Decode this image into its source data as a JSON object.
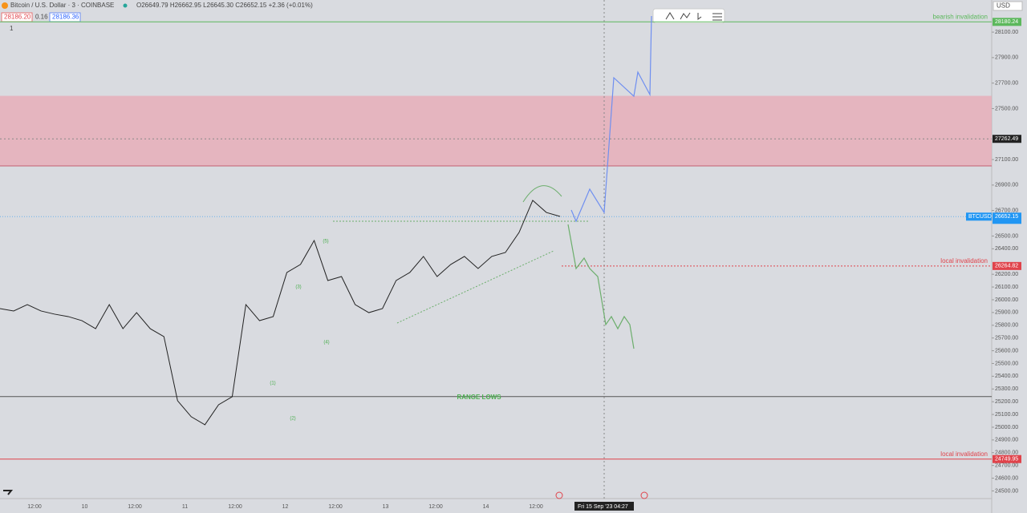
{
  "header": {
    "symbol": "Bitcoin / U.S. Dollar · 3 · COINBASE",
    "ohlc": "O26649.79 H26662.95 L26645.30 C26652.15 +2.36 (+0.01%)",
    "sell": "28186.20",
    "spread": "0.16",
    "buy": "28186.36",
    "currency": "USD",
    "interval": "1"
  },
  "time_axis": [
    "12:00",
    "10",
    "12:00",
    "11",
    "12:00",
    "12",
    "12:00",
    "13",
    "12:00",
    "14",
    "12:00"
  ],
  "crosshair_time": "Fri 15 Sep '23  04:27",
  "chart_data": {
    "type": "line",
    "ylim": [
      24440,
      28352
    ],
    "yticks": [
      {
        "value": 28100,
        "label": "28100.00"
      },
      {
        "value": 27900,
        "label": "27900.00"
      },
      {
        "value": 27700,
        "label": "27700.00"
      },
      {
        "value": 27500,
        "label": "27500.00"
      },
      {
        "value": 27100,
        "label": "27100.00"
      },
      {
        "value": 26900,
        "label": "26900.00"
      },
      {
        "value": 26700,
        "label": "26700.00"
      },
      {
        "value": 26500,
        "label": "26500.00"
      },
      {
        "value": 26400,
        "label": "26400.00"
      },
      {
        "value": 26200,
        "label": "26200.00"
      },
      {
        "value": 26100,
        "label": "26100.00"
      },
      {
        "value": 26000,
        "label": "26000.00"
      },
      {
        "value": 25900,
        "label": "25900.00"
      },
      {
        "value": 25800,
        "label": "25800.00"
      },
      {
        "value": 25700,
        "label": "25700.00"
      },
      {
        "value": 25600,
        "label": "25600.00"
      },
      {
        "value": 25500,
        "label": "25500.00"
      },
      {
        "value": 25400,
        "label": "25400.00"
      },
      {
        "value": 25300,
        "label": "25300.00"
      },
      {
        "value": 25200,
        "label": "25200.00"
      },
      {
        "value": 25100,
        "label": "25100.00"
      },
      {
        "value": 25000,
        "label": "25000.00"
      },
      {
        "value": 24900,
        "label": "24900.00"
      },
      {
        "value": 24800,
        "label": "24800.00"
      },
      {
        "value": 24700,
        "label": "24700.00"
      },
      {
        "value": 24600,
        "label": "24600.00"
      },
      {
        "value": 24500,
        "label": "24500.00"
      }
    ],
    "series": [
      {
        "name": "BTCUSD",
        "color": "#222222",
        "values": [
          25931,
          25912,
          25962,
          25912,
          25887,
          25868,
          25836,
          25773,
          25962,
          25773,
          25899,
          25773,
          25711,
          25208,
          25082,
          25019,
          25176,
          25239,
          25962,
          25836,
          25868,
          26214,
          26277,
          26465,
          26151,
          26182,
          25962,
          25899,
          25931,
          26151,
          26214,
          26340,
          26182,
          26277,
          26340,
          26245,
          26340,
          26371,
          26528,
          26780,
          26685,
          26654
        ]
      },
      {
        "color": "#6f8ff0",
        "values": [
          26704,
          26616,
          26868,
          26685,
          27742,
          27597,
          27786,
          27610,
          28226
        ]
      },
      {
        "color": "#6cae6c",
        "values": [
          26591,
          26245,
          26327,
          26245,
          26182,
          25805,
          25868,
          25773,
          25868,
          25805,
          25616
        ]
      }
    ],
    "zone": {
      "color": "#e8a8b4",
      "top": 27600,
      "bottom": 27050
    },
    "levels": [
      {
        "label": "bearish invalidation",
        "value": 28180.24,
        "value_label": "28180.24",
        "color": "#5cb85c"
      },
      {
        "label": "local invalidation",
        "value": 26264.82,
        "value_label": "26264.82",
        "color": "#e0434b"
      },
      {
        "label": "local invalidation",
        "value": 24749.95,
        "value_label": "24749.95",
        "color": "#e0434b"
      }
    ],
    "range_lows": {
      "label": "RANGE LOWS",
      "value": 25240
    },
    "current": {
      "name": "BTCUSD",
      "value": 26652.15,
      "value_label": "26652.15"
    },
    "crosshair": {
      "value": 27262.49,
      "value_label": "27262.49"
    },
    "wave_labels": [
      "(1)",
      "(2)",
      "(3)",
      "(4)",
      "(5)"
    ]
  }
}
